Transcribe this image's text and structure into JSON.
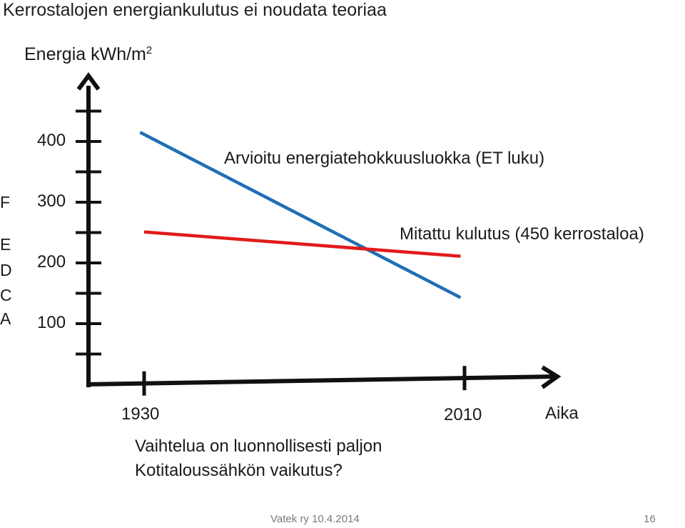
{
  "slide": {
    "title": "Kerrostalojen energiankulutus ei noudata teoriaa",
    "footer_left": "Vatek ry 10.4.2014",
    "page_number": "16",
    "notes": [
      "Vaihtelua on luonnollisesti paljon",
      "Kotitaloussähkön vaikutus?"
    ]
  },
  "chart_data": {
    "type": "line",
    "title": "Kerrostalojen energiankulutus ei noudata teoriaa",
    "ylabel_text": "Energia kWh/m",
    "ylabel_sup": "2",
    "xlabel": "Aika",
    "x_ticks": [
      "1930",
      "2010"
    ],
    "y_ticks": [
      100,
      200,
      300,
      400
    ],
    "energy_classes": [
      "F",
      "E",
      "D",
      "C",
      "A"
    ],
    "ylim": [
      0,
      500
    ],
    "xlim": [
      1923,
      2035
    ],
    "series": [
      {
        "name": "Arvioitu energiatehokkuusluokka (ET luku)",
        "color": "#1f6fb5",
        "x": [
          1929,
          2009
        ],
        "y": [
          415,
          143
        ]
      },
      {
        "name": "Mitattu kulutus (450 kerrostaloa)",
        "color": "#e11b1b",
        "x": [
          1930,
          2009
        ],
        "y": [
          251,
          211
        ]
      }
    ],
    "axis_color": "#111111",
    "grid": false
  }
}
